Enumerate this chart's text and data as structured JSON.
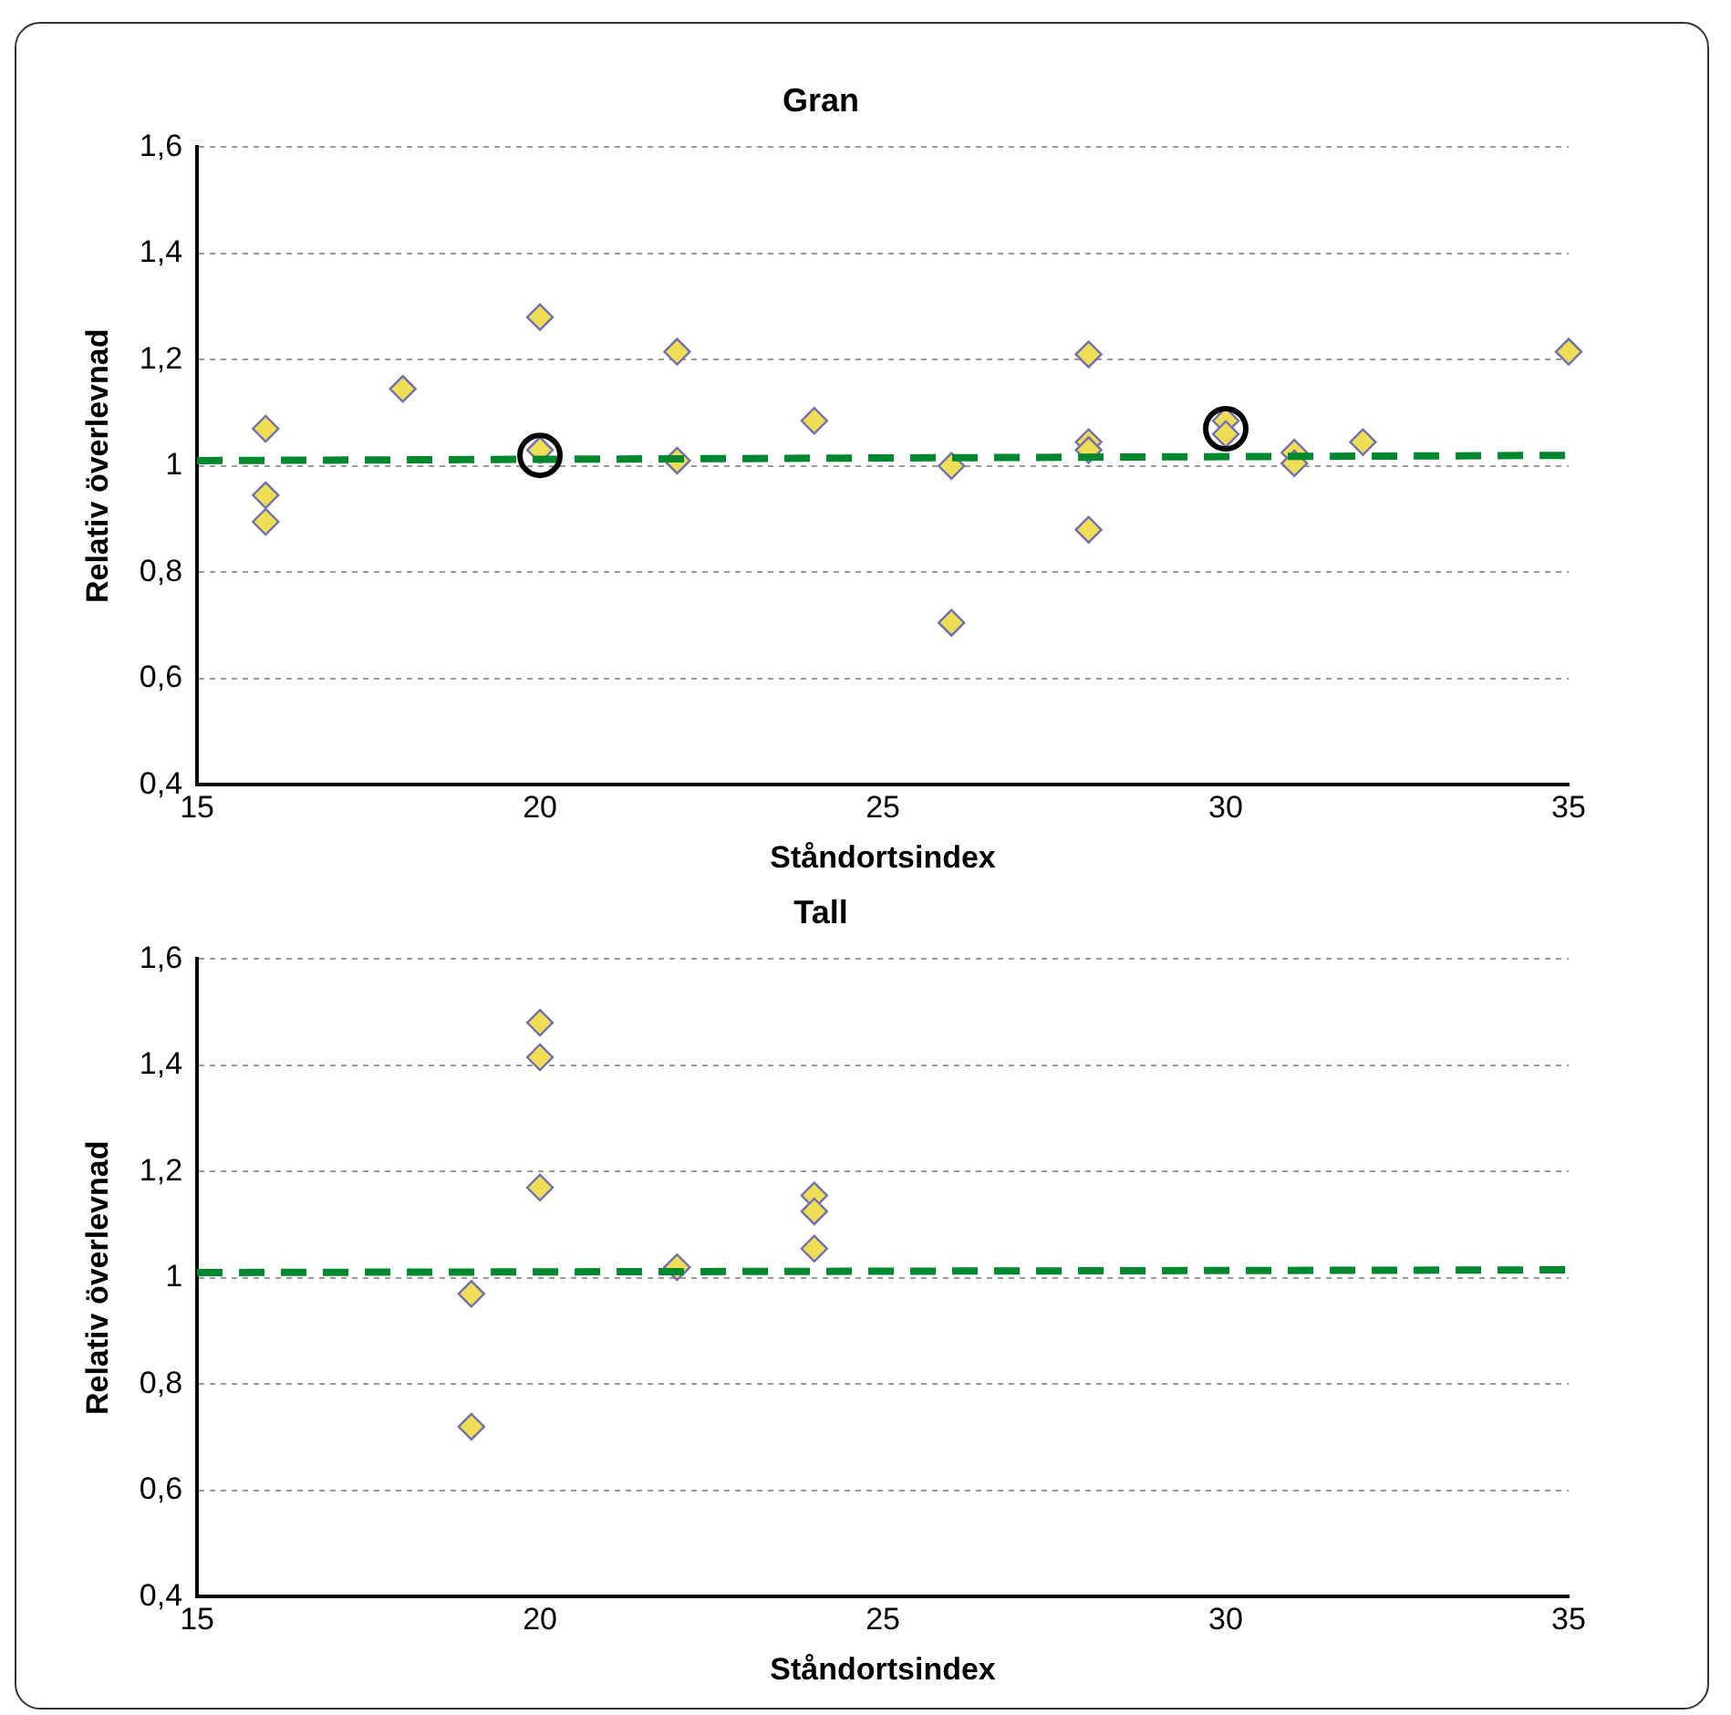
{
  "chart_data": [
    {
      "type": "scatter",
      "title": "Gran",
      "xlabel": "Ståndortsindex",
      "ylabel": "Relativ överlevnad",
      "xlim": [
        15,
        35
      ],
      "xticks": [
        15,
        20,
        25,
        30,
        35
      ],
      "ylim": [
        0.4,
        1.6
      ],
      "yticks": [
        {
          "value": 0.4,
          "label": "0,4"
        },
        {
          "value": 0.6,
          "label": "0,6"
        },
        {
          "value": 0.8,
          "label": "0,8"
        },
        {
          "value": 1,
          "label": "1"
        },
        {
          "value": 1.2,
          "label": "1,2"
        },
        {
          "value": 1.4,
          "label": "1,4"
        },
        {
          "value": 1.6,
          "label": "1,6"
        }
      ],
      "grid": "y",
      "legend": false,
      "marker": "diamond",
      "series": [
        {
          "color": "#eedd55",
          "x": [
            16,
            16,
            16,
            18,
            20,
            20,
            22,
            22,
            24,
            26,
            26,
            28,
            28,
            28,
            28,
            30,
            30,
            31,
            31,
            32,
            35
          ],
          "values": [
            1.07,
            0.945,
            0.895,
            1.145,
            1.28,
            1.03,
            1.215,
            1.01,
            1.085,
            1.0,
            0.705,
            1.21,
            1.045,
            1.03,
            0.88,
            1.085,
            1.06,
            1.025,
            1.005,
            1.045,
            1.215
          ]
        },
        {
          "type": "line",
          "color": "#00882e",
          "marker": "none",
          "line_style": "dashed",
          "x": [
            15,
            35
          ],
          "values": [
            1.01,
            1.02
          ]
        },
        {
          "color": "#000000",
          "marker": "circle",
          "x": [
            20,
            30
          ],
          "values": [
            1.02,
            1.07
          ]
        }
      ]
    },
    {
      "type": "scatter",
      "title": "Tall",
      "xlabel": "Ståndortsindex",
      "ylabel": "Relativ överlevnad",
      "xlim": [
        15,
        35
      ],
      "xticks": [
        15,
        20,
        25,
        30,
        35
      ],
      "ylim": [
        0.4,
        1.6
      ],
      "yticks": [
        {
          "value": 0.4,
          "label": "0,4"
        },
        {
          "value": 0.6,
          "label": "0,6"
        },
        {
          "value": 0.8,
          "label": "0,8"
        },
        {
          "value": 1,
          "label": "1"
        },
        {
          "value": 1.2,
          "label": "1,2"
        },
        {
          "value": 1.4,
          "label": "1,4"
        },
        {
          "value": 1.6,
          "label": "1,6"
        }
      ],
      "grid": "y",
      "legend": false,
      "marker": "diamond",
      "series": [
        {
          "color": "#eedd55",
          "x": [
            19,
            19,
            20,
            20,
            20,
            22,
            24,
            24,
            24
          ],
          "values": [
            0.97,
            0.72,
            1.48,
            1.415,
            1.17,
            1.02,
            1.155,
            1.125,
            1.055
          ]
        },
        {
          "type": "line",
          "color": "#00882e",
          "marker": "none",
          "line_style": "dashed",
          "x": [
            15,
            35
          ],
          "values": [
            1.01,
            1.015
          ]
        }
      ]
    }
  ]
}
